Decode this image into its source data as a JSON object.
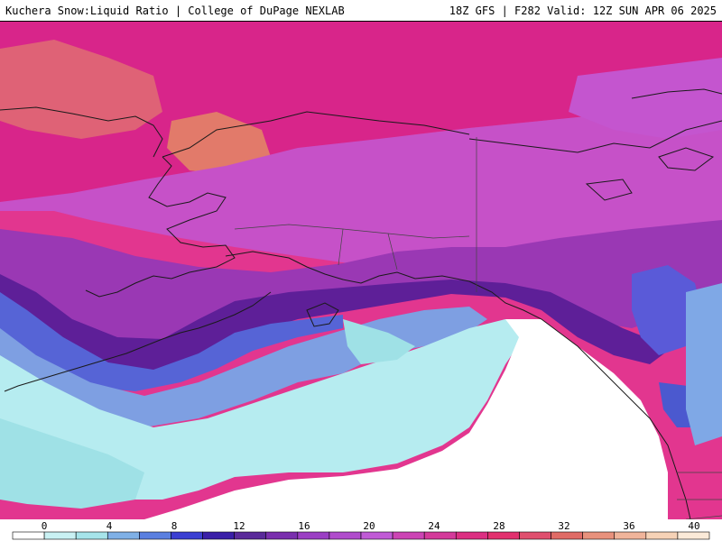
{
  "header": {
    "product": "Kuchera Snow:Liquid Ratio | College of DuPage NEXLAB",
    "run_info": "18Z GFS | F282 Valid: 12Z SUN APR 06 2025"
  },
  "colorbar": {
    "tick_labels": [
      "0",
      "4",
      "8",
      "12",
      "16",
      "20",
      "24",
      "28",
      "32",
      "36",
      "40"
    ],
    "colors": [
      "#ffffff",
      "#c9f1f3",
      "#a6e4ea",
      "#7fb0e6",
      "#5a7fe0",
      "#3b3fd2",
      "#3a1fa8",
      "#5a2a9a",
      "#7a2fae",
      "#9b3fc4",
      "#b04ccc",
      "#c05ad6",
      "#cc44b4",
      "#d43a9a",
      "#dc2f82",
      "#e2306e",
      "#e04f6e",
      "#e06b66",
      "#e8917c",
      "#f0b49a",
      "#f6d2b6",
      "#fbead8"
    ]
  },
  "map_colors": {
    "background_pink": "#e2368f",
    "magenta": "#d8258a",
    "orchid": "#c651c8",
    "violet": "#9a38b4",
    "indigo": "#5e1f98",
    "blue": "#5664d6",
    "light_blue": "#7e9fe2",
    "aqua": "#b6ecf0",
    "cyan": "#9fe1e6",
    "salmon": "#e06d72",
    "white": "#ffffff"
  }
}
